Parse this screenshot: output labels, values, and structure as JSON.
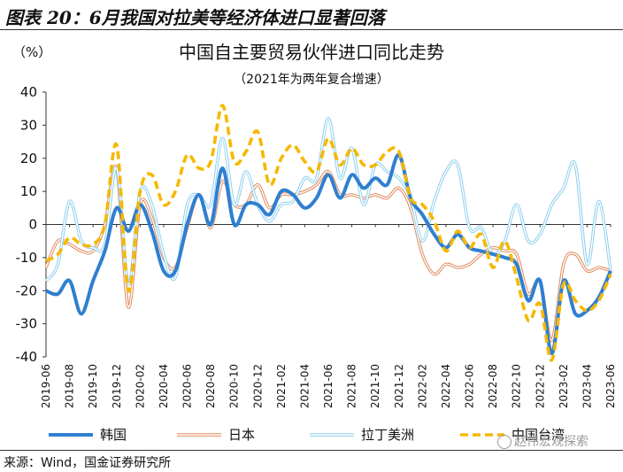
{
  "figure": {
    "label": "图表 20：6月我国对拉美等经济体进口显著回落",
    "source": "来源：Wind，国金证券研究所",
    "watermark": "赵伟宏观探索"
  },
  "chart_data": {
    "type": "line",
    "title": "中国自主要贸易伙伴进口同比走势",
    "subtitle": "（2021年为两年复合增速）",
    "ylabel": "（%）",
    "xlabel": "",
    "ylim": [
      -40,
      40
    ],
    "yticks": [
      40,
      30,
      20,
      10,
      0,
      -10,
      -20,
      -30,
      -40
    ],
    "grid": false,
    "legend_position": "bottom",
    "categories": [
      "2019-06",
      "2019-07",
      "2019-08",
      "2019-09",
      "2019-10",
      "2019-11",
      "2019-12",
      "2020-01",
      "2020-02",
      "2020-03",
      "2020-04",
      "2020-05",
      "2020-06",
      "2020-07",
      "2020-08",
      "2020-09",
      "2020-10",
      "2020-11",
      "2020-12",
      "2021-01",
      "2021-02",
      "2021-03",
      "2021-04",
      "2021-05",
      "2021-06",
      "2021-07",
      "2021-08",
      "2021-09",
      "2021-10",
      "2021-11",
      "2021-12",
      "2022-01",
      "2022-02",
      "2022-03",
      "2022-04",
      "2022-05",
      "2022-06",
      "2022-07",
      "2022-08",
      "2022-09",
      "2022-10",
      "2022-11",
      "2022-12",
      "2023-01",
      "2023-02",
      "2023-03",
      "2023-04",
      "2023-05",
      "2023-06"
    ],
    "tick_labels": [
      "2019-06",
      "2019-08",
      "2019-10",
      "2019-12",
      "2020-02",
      "2020-04",
      "2020-06",
      "2020-08",
      "2020-10",
      "2020-12",
      "2021-02",
      "2021-04",
      "2021-06",
      "2021-08",
      "2021-10",
      "2021-12",
      "2022-02",
      "2022-04",
      "2022-06",
      "2022-08",
      "2022-10",
      "2022-12",
      "2023-02",
      "2023-04",
      "2023-06"
    ],
    "series": [
      {
        "name": "韩国",
        "color": "#2f7fd1",
        "style": "solid-thick",
        "values": [
          -20,
          -21,
          -17,
          -27,
          -17,
          -8,
          5,
          -2,
          6,
          -2,
          -14,
          -14,
          0,
          9,
          0,
          17,
          0,
          6,
          6,
          3,
          10,
          9,
          5,
          8,
          15,
          8,
          15,
          11,
          14,
          12,
          21,
          8,
          3,
          -3,
          -7,
          -3,
          -7,
          -8,
          -9,
          -10,
          -12,
          -23,
          -17,
          -39,
          -17,
          -27,
          -26,
          -22,
          -14
        ]
      },
      {
        "name": "日本",
        "color": "#e08a5a",
        "style": "double",
        "values": [
          -13,
          -5,
          -6,
          -8,
          -8,
          0,
          17,
          -25,
          6,
          2,
          -10,
          -13,
          -1,
          9,
          -1,
          13,
          6,
          6,
          12,
          5,
          9,
          9,
          10,
          12,
          16,
          9,
          9,
          8,
          9,
          8,
          11,
          5,
          -9,
          -15,
          -12,
          -13,
          -12,
          -9,
          -7,
          -8,
          -9,
          -21,
          -17,
          -35,
          -12,
          -9,
          -14,
          -13,
          -14
        ]
      },
      {
        "name": "拉丁美洲",
        "color": "#8ed0ee",
        "style": "double",
        "values": [
          -17,
          -12,
          7,
          -5,
          -7,
          -6,
          17,
          -18,
          10,
          6,
          -9,
          -16,
          6,
          9,
          6,
          26,
          6,
          16,
          6,
          1,
          6,
          7,
          14,
          14,
          32,
          14,
          23,
          6,
          18,
          16,
          14,
          8,
          -5,
          7,
          16,
          18,
          -1,
          -1,
          -9,
          -5,
          6,
          -5,
          -3,
          6,
          11,
          18,
          -12,
          7,
          -14
        ]
      },
      {
        "name": "中国台湾",
        "color": "#f5b800",
        "style": "dashed",
        "values": [
          -11,
          -9,
          -4,
          -6,
          -6,
          0,
          24,
          -20,
          10,
          15,
          6,
          10,
          21,
          17,
          19,
          36,
          19,
          22,
          28,
          12,
          20,
          24,
          19,
          16,
          26,
          18,
          23,
          18,
          18,
          22,
          22,
          8,
          6,
          1,
          -8,
          -2,
          -7,
          -3,
          -13,
          -5,
          -16,
          -29,
          -24,
          -41,
          -18,
          -23,
          -26,
          -23,
          -15
        ]
      }
    ]
  }
}
